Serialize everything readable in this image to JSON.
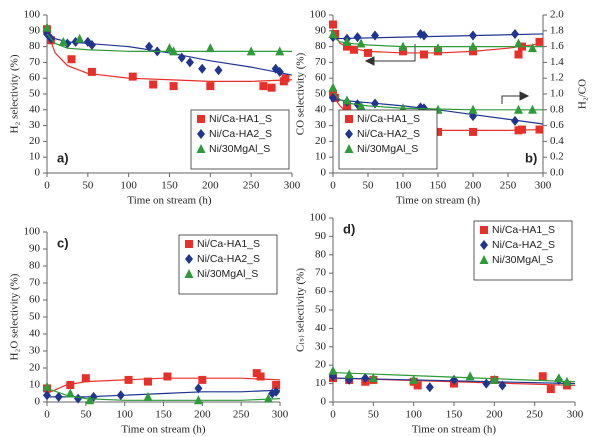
{
  "chart_data": [
    {
      "type": "scatter",
      "panel_label": "a)",
      "xlabel": "Time on stream (h)",
      "ylabel": "H₂ selectivity (%)",
      "xlim": [
        0,
        300
      ],
      "xticks": [
        0,
        50,
        100,
        150,
        200,
        250,
        300
      ],
      "ylim": [
        0,
        100
      ],
      "yticks": [
        0,
        10,
        20,
        30,
        40,
        50,
        60,
        70,
        80,
        90,
        100
      ],
      "legend": "bottom-right",
      "series": [
        {
          "name": "Ni/Ca-HA1_S",
          "color": "#e8302a",
          "marker": "square",
          "x": [
            0,
            5,
            30,
            55,
            105,
            130,
            155,
            200,
            265,
            275,
            290,
            292
          ],
          "values": [
            91,
            84,
            72,
            64,
            61,
            56,
            55,
            55,
            55,
            54,
            58,
            60
          ],
          "trend": {
            "x": [
              0,
              10,
              25,
              50,
              100,
              150,
              200,
              250,
              300
            ],
            "values": [
              90,
              76,
              68,
              63,
              60,
              59,
              58,
              58,
              59
            ]
          }
        },
        {
          "name": "Ni/Ca-HA2_S",
          "color": "#1f3590",
          "marker": "diamond",
          "x": [
            0,
            5,
            25,
            35,
            50,
            55,
            125,
            135,
            165,
            175,
            190,
            210,
            280,
            285
          ],
          "values": [
            88,
            85,
            82,
            83,
            83,
            81,
            80,
            77,
            73,
            70,
            66,
            65,
            66,
            64
          ],
          "trend": {
            "x": [
              0,
              10,
              25,
              50,
              100,
              150,
              200,
              250,
              300
            ],
            "values": [
              87,
              85,
              83,
              82,
              80,
              76,
              71,
              67,
              62
            ]
          }
        },
        {
          "name": "Ni/30MgAl_S",
          "color": "#2e9a3a",
          "marker": "triangle",
          "x": [
            0,
            20,
            40,
            150,
            155,
            200,
            250,
            285
          ],
          "values": [
            92,
            83,
            85,
            79,
            77,
            79,
            77,
            77
          ],
          "trend": {
            "x": [
              0,
              10,
              25,
              50,
              100,
              150,
              200,
              250,
              300
            ],
            "values": [
              88,
              82,
              79,
              78,
              77,
              77,
              77,
              77,
              77
            ]
          }
        }
      ]
    },
    {
      "type": "scatter",
      "panel_label": "b)",
      "xlabel": "Time on stream (h)",
      "ylabel": "CO selectivity (%)",
      "y2label": "H₂/CO",
      "xlim": [
        0,
        300
      ],
      "xticks": [
        0,
        50,
        100,
        150,
        200,
        250,
        300
      ],
      "ylim": [
        0,
        100
      ],
      "yticks": [
        0,
        10,
        20,
        30,
        40,
        50,
        60,
        70,
        80,
        90,
        100
      ],
      "y2lim": [
        0,
        2
      ],
      "y2ticks": [
        {
          "value": 0,
          "label": "0.0"
        },
        0.2,
        0.4,
        0.6,
        0.8,
        {
          "value": 1,
          "label": "1.0"
        },
        1.2,
        1.4,
        1.6,
        1.8,
        {
          "value": 2,
          "label": "2.0"
        }
      ],
      "legend": "bottom-left",
      "series": [
        {
          "name": "Ni/Ca-HA1_S",
          "color": "#e8302a",
          "marker": "square",
          "x": [
            0,
            3,
            20,
            30,
            50,
            100,
            130,
            150,
            200,
            265,
            270,
            295
          ],
          "values": [
            94,
            88,
            80,
            78,
            76,
            77,
            75,
            77,
            77,
            75,
            80,
            83
          ],
          "y2_values": [
            1.0,
            0.95,
            0.85,
            0.72,
            0.62,
            0.58,
            0.55,
            0.52,
            0.52,
            0.54,
            0.55,
            0.55
          ],
          "trend": {
            "x": [
              0,
              10,
              25,
              50,
              100,
              150,
              200,
              250,
              300
            ],
            "values": [
              90,
              82,
              79,
              77,
              76,
              76,
              77,
              79,
              82
            ]
          },
          "y2_trend": {
            "x": [
              0,
              10,
              25,
              50,
              100,
              150,
              200,
              250,
              300
            ],
            "values": [
              0.97,
              0.85,
              0.72,
              0.62,
              0.56,
              0.54,
              0.54,
              0.54,
              0.55
            ]
          }
        },
        {
          "name": "Ni/Ca-HA2_S",
          "color": "#1f3590",
          "marker": "diamond",
          "x": [
            0,
            20,
            35,
            60,
            125,
            130,
            200,
            260
          ],
          "values": [
            86,
            85,
            86,
            87,
            88,
            87,
            87,
            88
          ],
          "y2_values": [
            0.95,
            0.9,
            0.87,
            0.88,
            0.83,
            0.82,
            0.72,
            0.66
          ],
          "trend": {
            "x": [
              0,
              300
            ],
            "values": [
              85,
              88
            ]
          },
          "y2_trend": {
            "x": [
              0,
              50,
              100,
              150,
              200,
              250,
              300
            ],
            "values": [
              0.93,
              0.89,
              0.85,
              0.8,
              0.74,
              0.68,
              0.62
            ]
          }
        },
        {
          "name": "Ni/30MgAl_S",
          "color": "#2e9a3a",
          "marker": "triangle",
          "x": [
            0,
            20,
            40,
            100,
            150,
            200,
            265,
            285
          ],
          "values": [
            88,
            83,
            82,
            80,
            79,
            80,
            82,
            79
          ],
          "y2_values": [
            1.08,
            0.92,
            0.85,
            0.82,
            0.8,
            0.8,
            0.8,
            0.8
          ],
          "trend": {
            "x": [
              0,
              10,
              25,
              50,
              100,
              150,
              200,
              250,
              300
            ],
            "values": [
              86,
              83,
              82,
              81,
              80,
              80,
              80,
              80,
              80
            ]
          },
          "y2_trend": {
            "x": [
              0,
              10,
              25,
              50,
              100,
              150,
              200,
              250,
              300
            ],
            "values": [
              1.02,
              0.93,
              0.88,
              0.85,
              0.82,
              0.81,
              0.8,
              0.8,
              0.8
            ]
          }
        }
      ]
    },
    {
      "type": "scatter",
      "panel_label": "c)",
      "xlabel": "Time on stream (h)",
      "ylabel": "H₂O selectivity (%)",
      "xlim": [
        0,
        300
      ],
      "xticks": [
        0,
        50,
        100,
        150,
        200,
        250,
        300
      ],
      "ylim": [
        0,
        100
      ],
      "yticks": [
        0,
        10,
        20,
        30,
        40,
        50,
        60,
        70,
        80,
        90,
        100
      ],
      "legend": "top-right",
      "series": [
        {
          "name": "Ni/Ca-HA1_S",
          "color": "#e8302a",
          "marker": "square",
          "x": [
            0,
            30,
            50,
            105,
            130,
            155,
            200,
            270,
            275,
            295
          ],
          "values": [
            8,
            10,
            14,
            13,
            12,
            15,
            13,
            17,
            15,
            10
          ],
          "trend": {
            "x": [
              0,
              25,
              50,
              100,
              150,
              200,
              250,
              300
            ],
            "values": [
              5,
              10,
              12,
              13,
              14,
              14,
              14,
              13
            ]
          }
        },
        {
          "name": "Ni/Ca-HA2_S",
          "color": "#1f3590",
          "marker": "diamond",
          "x": [
            0,
            15,
            40,
            60,
            95,
            195,
            290,
            295
          ],
          "values": [
            4,
            3,
            2,
            3,
            4,
            8,
            5,
            6
          ],
          "trend": {
            "x": [
              0,
              50,
              100,
              150,
              200,
              250,
              300
            ],
            "values": [
              3,
              3,
              4,
              5,
              6,
              6,
              7
            ]
          }
        },
        {
          "name": "Ni/30MgAl_S",
          "color": "#2e9a3a",
          "marker": "triangle",
          "x": [
            0,
            30,
            55,
            130,
            195,
            285
          ],
          "values": [
            9,
            5,
            1,
            3,
            1,
            2
          ],
          "trend": {
            "x": [
              0,
              25,
              50,
              100,
              150,
              200,
              250,
              300
            ],
            "values": [
              8,
              4,
              2,
              1,
              1,
              1,
              1,
              2
            ]
          }
        }
      ]
    },
    {
      "type": "scatter",
      "panel_label": "d)",
      "xlabel": "Time on stream (h)",
      "ylabel": "C₍ₛ₎ selectivity (%)",
      "xlim": [
        0,
        300
      ],
      "xticks": [
        0,
        50,
        100,
        150,
        200,
        250,
        300
      ],
      "ylim": [
        0,
        100
      ],
      "yticks": [
        0,
        10,
        20,
        30,
        40,
        50,
        60,
        70,
        80,
        90,
        100
      ],
      "legend": "top-right",
      "series": [
        {
          "name": "Ni/Ca-HA1_S",
          "color": "#e8302a",
          "marker": "square",
          "x": [
            0,
            20,
            40,
            50,
            100,
            105,
            150,
            200,
            260,
            270,
            290
          ],
          "values": [
            13,
            12,
            11,
            12,
            11,
            9,
            10,
            12,
            14,
            7,
            9
          ],
          "trend": {
            "x": [
              0,
              300
            ],
            "values": [
              13,
              9
            ]
          }
        },
        {
          "name": "Ni/Ca-HA2_S",
          "color": "#1f3590",
          "marker": "diamond",
          "x": [
            0,
            20,
            40,
            120,
            150,
            190,
            210,
            280
          ],
          "values": [
            14,
            12,
            13,
            8,
            12,
            10,
            9,
            12
          ],
          "trend": {
            "x": [
              0,
              300
            ],
            "values": [
              13,
              10
            ]
          }
        },
        {
          "name": "Ni/30MgAl_S",
          "color": "#2e9a3a",
          "marker": "triangle",
          "x": [
            0,
            20,
            50,
            100,
            170,
            200,
            280,
            290
          ],
          "values": [
            17,
            15,
            13,
            12,
            14,
            12,
            13,
            11
          ],
          "trend": {
            "x": [
              0,
              300
            ],
            "values": [
              16,
              11
            ]
          }
        }
      ]
    }
  ]
}
